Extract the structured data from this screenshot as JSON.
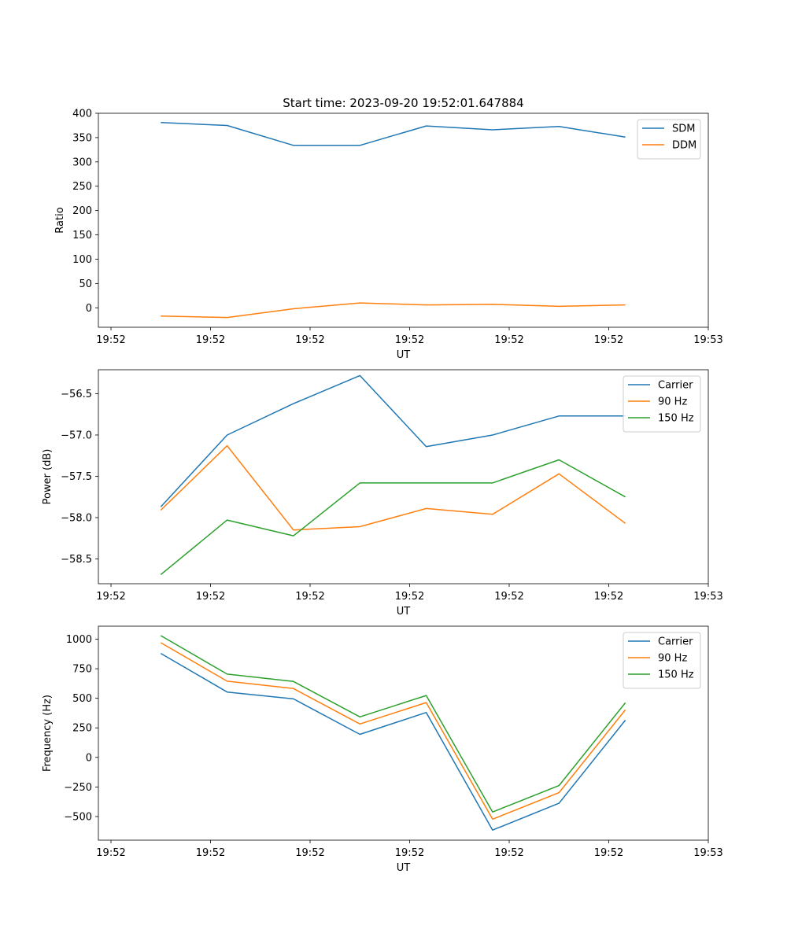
{
  "figure_title": "Start time: 2023-09-20 19:52:01.647884",
  "chart_data": [
    {
      "type": "line",
      "title": "Start time: 2023-09-20 19:52:01.647884",
      "xlabel": "UT",
      "ylabel": "Ratio",
      "xlim": [
        -0.19,
        9.0
      ],
      "ylim": [
        -40,
        400
      ],
      "x": [
        0.75,
        1.75,
        2.75,
        3.75,
        4.75,
        5.75,
        6.75,
        7.75
      ],
      "xticks": [
        0,
        1.5,
        3,
        4.5,
        6,
        7.5,
        9
      ],
      "xtick_labels": [
        "19:52",
        "19:52",
        "19:52",
        "19:52",
        "19:52",
        "19:52",
        "19:53"
      ],
      "yticks": [
        0,
        50,
        100,
        150,
        200,
        250,
        300,
        350,
        400
      ],
      "ytick_labels": [
        "0",
        "50",
        "100",
        "150",
        "200",
        "250",
        "300",
        "350",
        "400"
      ],
      "legend": "top-right",
      "series": [
        {
          "name": "SDM",
          "color": "#1f77b4",
          "values": [
            381,
            375,
            334,
            334,
            374,
            366,
            373,
            351
          ]
        },
        {
          "name": "DDM",
          "color": "#ff7f0e",
          "values": [
            -17,
            -20,
            -2,
            10,
            6,
            7,
            3,
            6
          ]
        }
      ]
    },
    {
      "type": "line",
      "title": "",
      "xlabel": "UT",
      "ylabel": "Power (dB)",
      "xlim": [
        -0.19,
        9.0
      ],
      "ylim": [
        -58.8,
        -56.21
      ],
      "x": [
        0.75,
        1.75,
        2.75,
        3.75,
        4.75,
        5.75,
        6.75,
        7.75
      ],
      "xticks": [
        0,
        1.5,
        3,
        4.5,
        6,
        7.5,
        9
      ],
      "xtick_labels": [
        "19:52",
        "19:52",
        "19:52",
        "19:52",
        "19:52",
        "19:52",
        "19:53"
      ],
      "yticks": [
        -58.5,
        -58.0,
        -57.5,
        -57.0,
        -56.5
      ],
      "ytick_labels": [
        "−58.5",
        "−58.0",
        "−57.5",
        "−57.0",
        "−56.5"
      ],
      "legend": "top-right",
      "series": [
        {
          "name": "Carrier",
          "color": "#1f77b4",
          "values": [
            -57.87,
            -57.0,
            -56.62,
            -56.28,
            -57.14,
            -57.0,
            -56.77,
            -56.77
          ]
        },
        {
          "name": "90 Hz",
          "color": "#ff7f0e",
          "values": [
            -57.91,
            -57.13,
            -58.15,
            -58.11,
            -57.89,
            -57.96,
            -57.47,
            -58.07
          ]
        },
        {
          "name": "150 Hz",
          "color": "#2ca02c",
          "values": [
            -58.69,
            -58.03,
            -58.22,
            -57.58,
            -57.58,
            -57.58,
            -57.3,
            -57.75
          ]
        }
      ]
    },
    {
      "type": "line",
      "title": "",
      "xlabel": "UT",
      "ylabel": "Frequency (Hz)",
      "xlim": [
        -0.19,
        9.0
      ],
      "ylim": [
        -700,
        1110
      ],
      "x": [
        0.75,
        1.75,
        2.75,
        3.75,
        4.75,
        5.75,
        6.75,
        7.75
      ],
      "xticks": [
        0,
        1.5,
        3,
        4.5,
        6,
        7.5,
        9
      ],
      "xtick_labels": [
        "19:52",
        "19:52",
        "19:52",
        "19:52",
        "19:52",
        "19:52",
        "19:53"
      ],
      "yticks": [
        -500,
        -250,
        0,
        250,
        500,
        750,
        1000
      ],
      "ytick_labels": [
        "−500",
        "−250",
        "0",
        "250",
        "500",
        "750",
        "1000"
      ],
      "legend": "top-right",
      "series": [
        {
          "name": "Carrier",
          "color": "#1f77b4",
          "values": [
            880,
            553,
            495,
            195,
            380,
            -615,
            -388,
            315
          ]
        },
        {
          "name": "90 Hz",
          "color": "#ff7f0e",
          "values": [
            970,
            645,
            582,
            283,
            464,
            -522,
            -298,
            402
          ]
        },
        {
          "name": "150 Hz",
          "color": "#2ca02c",
          "values": [
            1030,
            705,
            642,
            343,
            524,
            -462,
            -238,
            462
          ]
        }
      ]
    }
  ]
}
